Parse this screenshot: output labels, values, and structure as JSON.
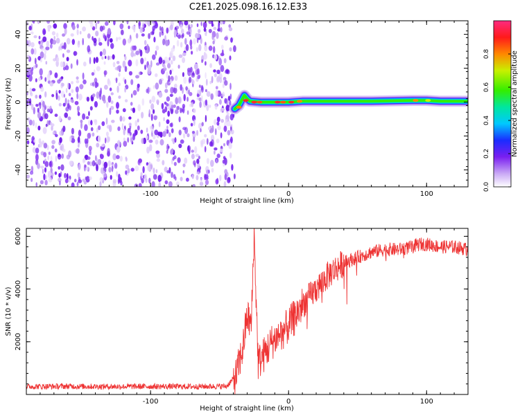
{
  "title": "C2E1.2025.098.16.12.E33",
  "chart_data": [
    {
      "type": "heatmap",
      "xlabel": "Height of straight line (km)",
      "ylabel": "Frequency (Hz)",
      "xlim": [
        -190,
        130
      ],
      "ylim": [
        -50,
        48
      ],
      "x_ticks": [
        -100,
        0,
        100
      ],
      "x_tick_labels": [
        "-100",
        "0",
        "100"
      ],
      "y_ticks": [
        -40,
        -20,
        0,
        20,
        40
      ],
      "y_tick_labels": [
        "-40",
        "-20",
        "0",
        "20",
        "40"
      ],
      "noise_region_x": [
        -190,
        -39
      ],
      "ridge": {
        "x": [
          -39,
          -36,
          -34,
          -32,
          -30,
          -28,
          -20,
          -10,
          0,
          10,
          20,
          60,
          90,
          100,
          110,
          130
        ],
        "y": [
          -4,
          -2,
          1,
          4,
          2,
          0.5,
          0,
          0,
          0,
          0.5,
          0.5,
          0.5,
          1,
          1,
          0.5,
          0.5
        ]
      },
      "colorbar": {
        "label": "Normalized spectral amplitude",
        "range": [
          0,
          1
        ],
        "ticks": [
          0,
          0.2,
          0.4,
          0.6,
          0.8
        ],
        "tick_labels": [
          "0.0",
          "0.2",
          "0.4",
          "0.6",
          "0.8"
        ]
      }
    },
    {
      "type": "line",
      "xlabel": "Height of straight line (km)",
      "ylabel": "SNR (10 * v/v)",
      "xlim": [
        -190,
        130
      ],
      "ylim": [
        0,
        6300
      ],
      "x_ticks": [
        -100,
        0,
        100
      ],
      "x_tick_labels": [
        "-100",
        "0",
        "100"
      ],
      "y_ticks": [
        2000,
        4000,
        6000
      ],
      "y_tick_labels": [
        "2000",
        "4000",
        "6000"
      ],
      "color": "#ee3333",
      "series": [
        {
          "x": [
            -190,
            -160,
            -130,
            -100,
            -70,
            -45,
            -38,
            -33,
            -30,
            -27,
            -25,
            -22,
            -18,
            -12,
            -6,
            0,
            5,
            10,
            20,
            30,
            40,
            50,
            60,
            70,
            80,
            90,
            95,
            100,
            110,
            120,
            130
          ],
          "values": [
            300,
            310,
            300,
            305,
            300,
            310,
            700,
            1800,
            3000,
            2600,
            6100,
            1200,
            1500,
            2000,
            2300,
            2600,
            3000,
            3400,
            4000,
            4600,
            5000,
            5200,
            5400,
            5500,
            5500,
            5600,
            5700,
            5700,
            5600,
            5600,
            5500
          ]
        }
      ]
    }
  ]
}
